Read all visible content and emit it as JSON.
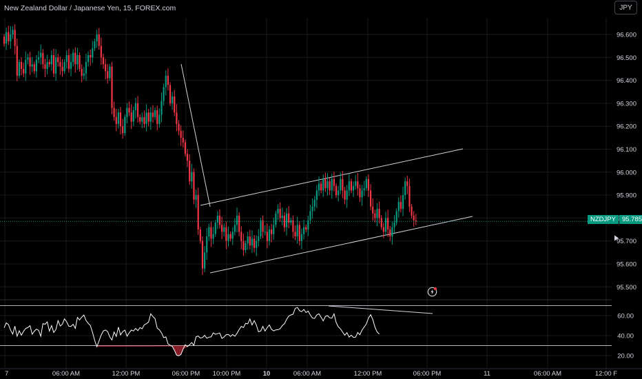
{
  "header": {
    "symbol_title": "New Zealand Dollar / Japanese Yen, 15, FOREX.com",
    "currency_button": "JPY"
  },
  "last_price": {
    "symbol": "NZDJPY",
    "value": "95.785",
    "color": "#089981"
  },
  "colors": {
    "background": "#000000",
    "up_candle": "#089981",
    "down_candle": "#f23645",
    "grid": "#1a1a1a",
    "axis_text": "#d1d4dc",
    "trendline": "#d1d4dc",
    "oscillator_line": "#ffffff",
    "oversold_fill": "#f23645"
  },
  "icons": [
    "alert-lightning-icon",
    "scroll-to-realtime-icon"
  ],
  "chart_data": [
    {
      "type": "candlestick",
      "title": "New Zealand Dollar / Japanese Yen, 15, FOREX.com",
      "ylim": [
        95.43,
        96.67
      ],
      "y_ticks": [
        "96.600",
        "96.500",
        "96.400",
        "96.300",
        "96.200",
        "96.100",
        "96.000",
        "95.900",
        "95.800",
        "95.700",
        "95.600",
        "95.500"
      ],
      "x_ticks": [
        "7",
        "06:00 AM",
        "12:00 PM",
        "06:00 PM",
        "10:00 PM",
        "10",
        "06:00 AM",
        "12:00 PM",
        "06:00 PM",
        "11",
        "06:00 AM",
        "12:00 F"
      ],
      "x_tick_bold": [
        "10"
      ],
      "last_close": 95.785,
      "closes": [
        96.56,
        96.61,
        96.57,
        96.6,
        96.62,
        96.55,
        96.42,
        96.48,
        96.45,
        96.43,
        96.49,
        96.5,
        96.46,
        96.47,
        96.44,
        96.49,
        96.5,
        96.52,
        96.47,
        96.45,
        96.48,
        96.47,
        96.51,
        96.43,
        96.5,
        96.48,
        96.46,
        96.44,
        96.48,
        96.51,
        96.45,
        96.48,
        96.52,
        96.47,
        96.51,
        96.45,
        96.42,
        96.43,
        96.48,
        96.51,
        96.5,
        96.54,
        96.57,
        96.6,
        96.55,
        96.5,
        96.47,
        96.44,
        96.41,
        96.46,
        96.28,
        96.24,
        96.21,
        96.26,
        96.2,
        96.17,
        96.24,
        96.28,
        96.26,
        96.22,
        96.27,
        96.3,
        96.24,
        96.22,
        96.24,
        96.21,
        96.26,
        96.22,
        96.26,
        96.24,
        96.27,
        96.21,
        96.25,
        96.31,
        96.37,
        96.42,
        96.38,
        96.3,
        96.33,
        96.26,
        96.21,
        96.18,
        96.15,
        96.13,
        96.08,
        96.05,
        95.96,
        96.0,
        95.88,
        95.9,
        95.75,
        95.7,
        95.58,
        95.65,
        95.72,
        95.76,
        95.71,
        95.73,
        95.78,
        95.81,
        95.77,
        95.74,
        95.76,
        95.7,
        95.73,
        95.71,
        95.74,
        95.77,
        95.81,
        95.74,
        95.7,
        95.66,
        95.69,
        95.72,
        95.68,
        95.71,
        95.67,
        95.7,
        95.72,
        95.79,
        95.74,
        95.74,
        95.7,
        95.75,
        95.73,
        95.77,
        95.82,
        95.84,
        95.8,
        95.81,
        95.76,
        95.82,
        95.78,
        95.79,
        95.74,
        95.72,
        95.77,
        95.7,
        95.73,
        95.76,
        95.75,
        95.79,
        95.83,
        95.85,
        95.88,
        95.92,
        95.95,
        95.92,
        95.97,
        95.93,
        95.96,
        95.92,
        95.97,
        95.94,
        95.9,
        95.92,
        95.97,
        95.92,
        95.88,
        95.92,
        95.96,
        95.92,
        95.94,
        95.96,
        95.93,
        95.89,
        95.92,
        95.93,
        95.97,
        95.92,
        95.85,
        95.82,
        95.8,
        95.84,
        95.8,
        95.76,
        95.74,
        95.8,
        95.75,
        95.72,
        95.76,
        95.78,
        95.83,
        95.87,
        95.84,
        95.9,
        95.96,
        95.94,
        95.85,
        95.81,
        95.79,
        95.785
      ]
    },
    {
      "type": "line",
      "title": "",
      "ylim": [
        15,
        71
      ],
      "y_ticks": [
        "60.00",
        "40.00",
        "20.00"
      ],
      "bands": [
        70,
        30
      ],
      "values": [
        47.8,
        52.7,
        51.0,
        45.4,
        41.5,
        49.5,
        39.4,
        44.8,
        40.4,
        44.3,
        47.2,
        48.0,
        50.0,
        41.3,
        44.4,
        46.5,
        45.2,
        39.4,
        52.0,
        51.4,
        53.7,
        44.5,
        50.0,
        43.1,
        46.0,
        55.0,
        49.6,
        51.3,
        56.7,
        53.8,
        49.4,
        49.2,
        51.3,
        47.2,
        58.2,
        55.7,
        58.5,
        60.6,
        55.2,
        52.3,
        50.1,
        43.2,
        35.1,
        28.8,
        34.5,
        40.4,
        44.6,
        45.6,
        44.1,
        38.6,
        35.6,
        43.6,
        39.1,
        48.5,
        40.7,
        44.0,
        45.5,
        39.4,
        42.7,
        45.6,
        44.6,
        47.2,
        44.9,
        48.0,
        46.8,
        50.7,
        51.9,
        53.6,
        61.8,
        59.1,
        56.9,
        47.5,
        45.8,
        42.7,
        38.0,
        38.7,
        31.7,
        30.4,
        29.2,
        25.1,
        20.4,
        19.8,
        21.2,
        26.5,
        30.8,
        28.9,
        30.8,
        33.0,
        30.2,
        38.8,
        39.5,
        37.5,
        38.1,
        40.3,
        37.3,
        38.4,
        38.7,
        42.7,
        41.3,
        41.9,
        42.6,
        37.2,
        38.6,
        40.9,
        41.2,
        39.2,
        41.1,
        39.3,
        42.2,
        46.0,
        49.2,
        48.1,
        52.3,
        51.8,
        56.6,
        50.6,
        55.0,
        50.4,
        43.8,
        44.6,
        49.2,
        44.6,
        47.9,
        50.6,
        46.3,
        44.7,
        45.7,
        45.9,
        46.8,
        50.0,
        51.8,
        56.1,
        59.6,
        60.7,
        61.3,
        67.2,
        68.2,
        65.0,
        63.9,
        66.2,
        63.1,
        64.5,
        60.6,
        57.5,
        57.2,
        60.6,
        61.8,
        58.4,
        54.7,
        59.2,
        60.0,
        57.8,
        57.5,
        61.8,
        53.2,
        48.8,
        46.7,
        43.5,
        40.4,
        42.9,
        38.5,
        40.4,
        38.2,
        38.4,
        43.1,
        40.9,
        45.6,
        48.6,
        51.6,
        57.7,
        60.9,
        56.1,
        48.3,
        43.6,
        41.6
      ]
    }
  ]
}
